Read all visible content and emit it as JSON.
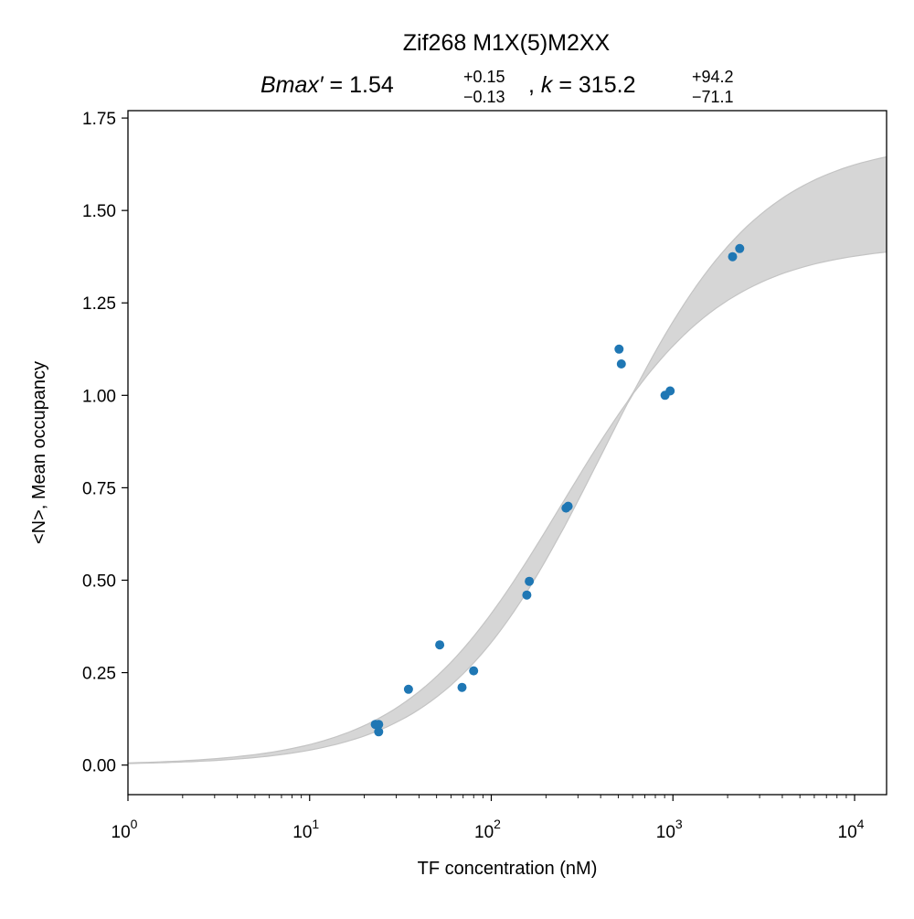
{
  "chart_data": {
    "type": "scatter",
    "title": "Zif268 M1X(5)M2XX",
    "subtitle": {
      "bmax_label": "Bmax′",
      "bmax_value": "1.54",
      "bmax_plus": "+0.15",
      "bmax_minus": "−0.13",
      "k_label": "k",
      "k_value": "315.2",
      "k_plus": "+94.2",
      "k_minus": "−71.1"
    },
    "xlabel": "TF concentration (nM)",
    "ylabel": "<N>, Mean occupancy",
    "xscale": "log",
    "xlim": [
      1,
      15000
    ],
    "ylim": [
      -0.08,
      1.77
    ],
    "grid": false,
    "x_ticks": [
      {
        "value": 1,
        "base": "10",
        "exp": "0"
      },
      {
        "value": 10,
        "base": "10",
        "exp": "1"
      },
      {
        "value": 100,
        "base": "10",
        "exp": "2"
      },
      {
        "value": 1000,
        "base": "10",
        "exp": "3"
      },
      {
        "value": 10000,
        "base": "10",
        "exp": "4"
      }
    ],
    "y_ticks": [
      {
        "value": 0.0,
        "label": "0.00"
      },
      {
        "value": 0.25,
        "label": "0.25"
      },
      {
        "value": 0.5,
        "label": "0.50"
      },
      {
        "value": 0.75,
        "label": "0.75"
      },
      {
        "value": 1.0,
        "label": "1.00"
      },
      {
        "value": 1.25,
        "label": "1.25"
      },
      {
        "value": 1.5,
        "label": "1.50"
      },
      {
        "value": 1.75,
        "label": "1.75"
      }
    ],
    "series": [
      {
        "type": "scatter",
        "color": "#1f77b4",
        "points": [
          {
            "x": 23,
            "y": 0.11
          },
          {
            "x": 24,
            "y": 0.11
          },
          {
            "x": 24,
            "y": 0.09
          },
          {
            "x": 35,
            "y": 0.205
          },
          {
            "x": 52,
            "y": 0.325
          },
          {
            "x": 69,
            "y": 0.21
          },
          {
            "x": 80,
            "y": 0.255
          },
          {
            "x": 157,
            "y": 0.46
          },
          {
            "x": 162,
            "y": 0.497
          },
          {
            "x": 258,
            "y": 0.695
          },
          {
            "x": 265,
            "y": 0.7
          },
          {
            "x": 505,
            "y": 1.125
          },
          {
            "x": 520,
            "y": 1.085
          },
          {
            "x": 905,
            "y": 1.0
          },
          {
            "x": 965,
            "y": 1.012
          },
          {
            "x": 2130,
            "y": 1.375
          },
          {
            "x": 2330,
            "y": 1.397
          }
        ]
      },
      {
        "type": "band",
        "color": "#d6d6d6",
        "edge_color": "#c4c4c4",
        "lower": {
          "Bmax": 1.41,
          "k": 244.1
        },
        "upper": {
          "Bmax": 1.69,
          "k": 409.4
        }
      }
    ]
  }
}
